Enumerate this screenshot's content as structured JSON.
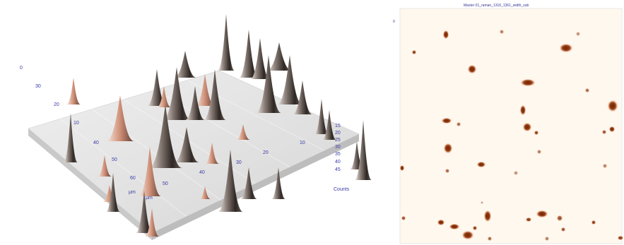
{
  "surface_plot": {
    "left_axis_ticks": [
      "0",
      "30",
      "20",
      "10"
    ],
    "front_axis_ticks": [
      "40",
      "50",
      "60"
    ],
    "front_axis_unit": "μm",
    "mid_axis_ticks": [
      "50",
      "40",
      "30",
      "20",
      "10"
    ],
    "right_axis_ticks": [
      "15",
      "20",
      "25",
      "30",
      "35",
      "40",
      "45"
    ],
    "right_axis_label": "Counts",
    "colors": {
      "baseline": "#d8d8d8",
      "peak_dark": "#2e2723",
      "peak_light": "#f2ebe6",
      "peak_warm": "#cf8f76",
      "tick_text": "#3a3aa8"
    }
  },
  "heat_map": {
    "title": "Master 01_raman_1316_1361_width_sub",
    "y_ticks": [
      "0",
      "",
      "",
      "",
      "",
      "",
      "",
      ""
    ],
    "colors": {
      "background": "#fff8ef",
      "spot_core": "#6b2508",
      "spot_edge": "#e7a172"
    }
  }
}
